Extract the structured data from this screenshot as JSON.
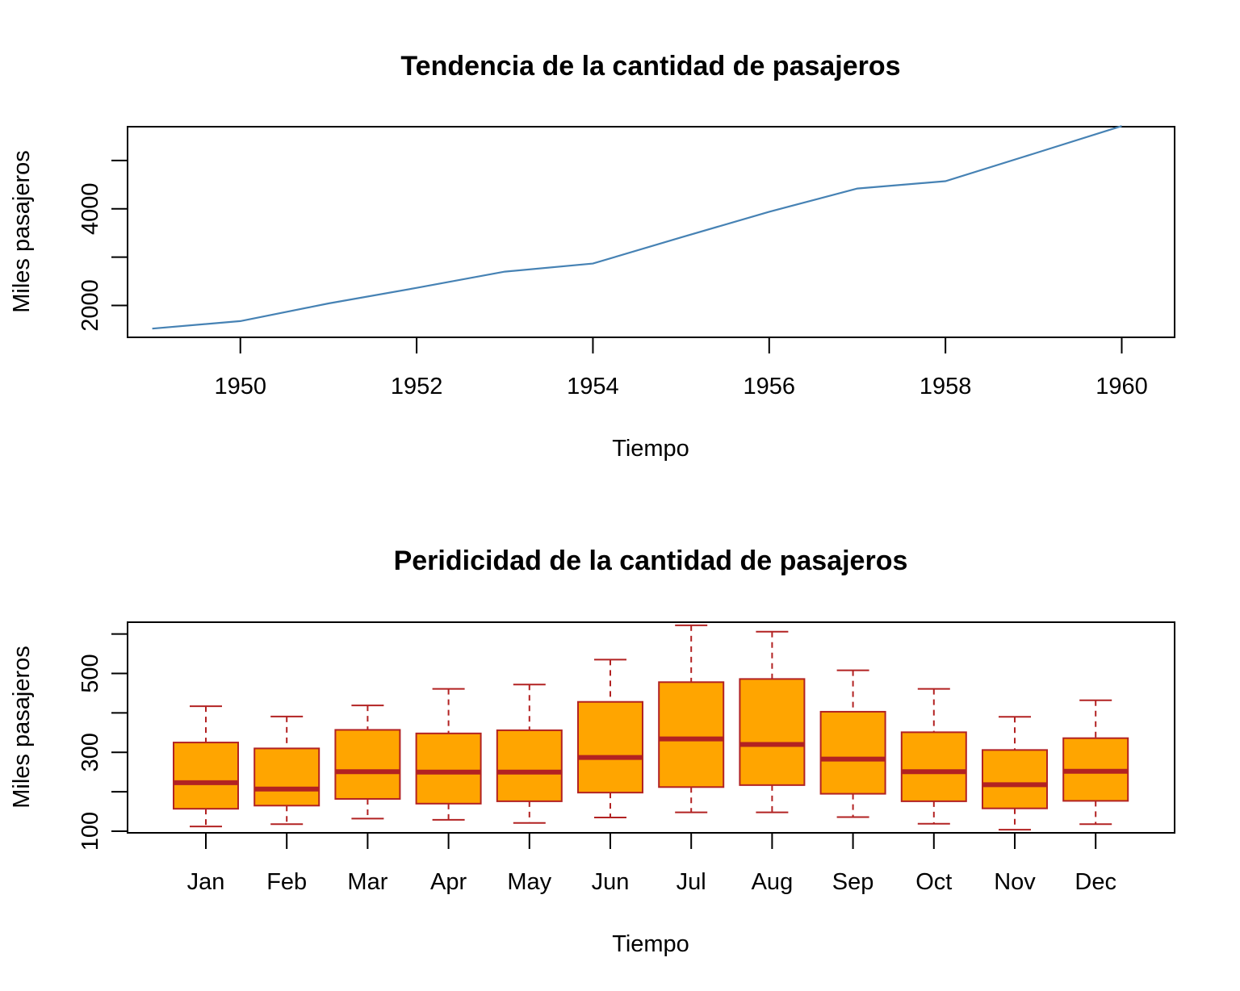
{
  "chart_data": [
    {
      "type": "line",
      "title": "Tendencia de la cantidad de pasajeros",
      "xlabel": "Tiempo",
      "ylabel": "Miles pasajeros",
      "xlim": [
        1948.72,
        1960.6
      ],
      "ylim": [
        1340,
        5700
      ],
      "x_ticks": [
        1950,
        1952,
        1954,
        1956,
        1958,
        1960
      ],
      "y_ticks": [
        2000,
        3000,
        4000,
        5000
      ],
      "y_tick_labels": [
        "2000",
        "",
        "4000",
        ""
      ],
      "line_color": "#4682b4",
      "series": [
        {
          "x": [
            1949,
            1950,
            1951,
            1952,
            1953,
            1954,
            1955,
            1956,
            1957,
            1958,
            1959,
            1960
          ],
          "values": [
            1520,
            1676,
            2042,
            2364,
            2700,
            2867,
            3408,
            3939,
            4421,
            4572,
            5140,
            5714
          ]
        }
      ]
    },
    {
      "type": "box",
      "title": "Peridicidad de la cantidad de pasajeros",
      "xlabel": "Tiempo",
      "ylabel": "Miles pasajeros",
      "ylim": [
        96,
        630
      ],
      "y_ticks": [
        100,
        200,
        300,
        400,
        500,
        600
      ],
      "y_tick_labels": [
        "100",
        "",
        "300",
        "",
        "500",
        ""
      ],
      "box_fill": "#ffa500",
      "box_border": "#b22222",
      "categories": [
        "Jan",
        "Feb",
        "Mar",
        "Apr",
        "May",
        "Jun",
        "Jul",
        "Aug",
        "Sep",
        "Oct",
        "Nov",
        "Dec"
      ],
      "boxes": [
        {
          "min": 112,
          "q1": 157,
          "median": 223,
          "q3": 325,
          "max": 417
        },
        {
          "min": 118,
          "q1": 165,
          "median": 207,
          "q3": 310,
          "max": 391
        },
        {
          "min": 132,
          "q1": 182,
          "median": 251,
          "q3": 357,
          "max": 419
        },
        {
          "min": 129,
          "q1": 170,
          "median": 250,
          "q3": 348,
          "max": 461
        },
        {
          "min": 121,
          "q1": 176,
          "median": 250,
          "q3": 356,
          "max": 472
        },
        {
          "min": 135,
          "q1": 198,
          "median": 287,
          "q3": 428,
          "max": 535
        },
        {
          "min": 148,
          "q1": 212,
          "median": 334,
          "q3": 478,
          "max": 622
        },
        {
          "min": 148,
          "q1": 217,
          "median": 320,
          "q3": 486,
          "max": 606
        },
        {
          "min": 136,
          "q1": 195,
          "median": 283,
          "q3": 403,
          "max": 508
        },
        {
          "min": 119,
          "q1": 176,
          "median": 251,
          "q3": 351,
          "max": 461
        },
        {
          "min": 104,
          "q1": 158,
          "median": 218,
          "q3": 306,
          "max": 390
        },
        {
          "min": 118,
          "q1": 177,
          "median": 252,
          "q3": 336,
          "max": 432
        }
      ]
    }
  ]
}
